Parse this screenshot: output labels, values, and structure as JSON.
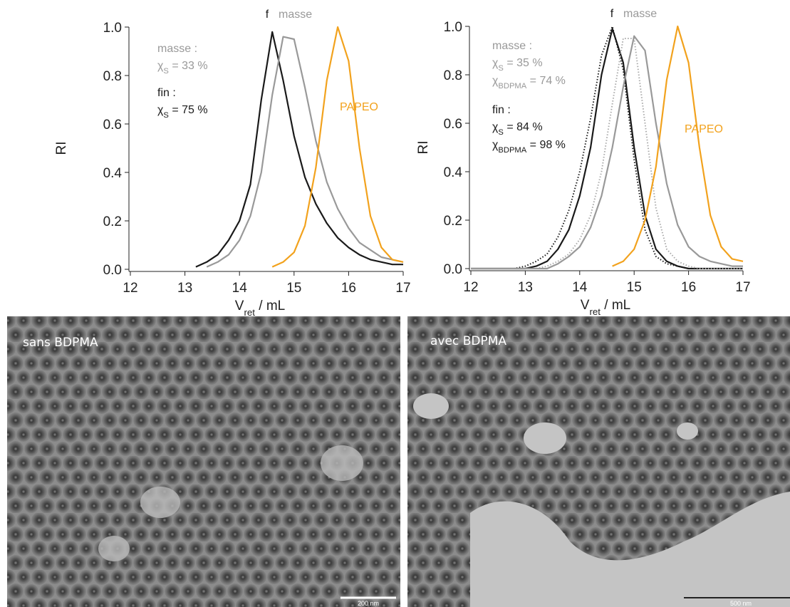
{
  "chart_data": [
    {
      "type": "line",
      "ylabel": "RI",
      "xlabel": {
        "text": "V",
        "sub": "ret",
        "after": " / mL"
      },
      "x": [
        13.2,
        13.4,
        13.6,
        13.8,
        14.0,
        14.2,
        14.4,
        14.6,
        14.8,
        15.0,
        15.2,
        15.4,
        15.6,
        15.8,
        16.0,
        16.2,
        16.4,
        16.6,
        16.8,
        17.0
      ],
      "series": [
        {
          "color": "#1a1a1a",
          "line_style": "solid",
          "values": [
            0.01,
            0.03,
            0.06,
            0.12,
            0.2,
            0.35,
            0.7,
            0.98,
            0.78,
            0.55,
            0.38,
            0.27,
            0.19,
            0.13,
            0.09,
            0.06,
            0.04,
            0.03,
            0.02,
            0.02
          ]
        },
        {
          "color": "#999999",
          "line_style": "solid",
          "values": [
            null,
            0.01,
            0.03,
            0.06,
            0.12,
            0.22,
            0.4,
            0.72,
            0.96,
            0.95,
            0.75,
            0.53,
            0.36,
            0.25,
            0.17,
            0.11,
            0.08,
            0.05,
            0.04,
            0.03
          ]
        },
        {
          "color": "#f2a21d",
          "line_style": "solid",
          "values": [
            null,
            null,
            null,
            null,
            null,
            null,
            null,
            0.01,
            0.03,
            0.07,
            0.18,
            0.42,
            0.78,
            1.0,
            0.86,
            0.5,
            0.22,
            0.09,
            0.04,
            0.03
          ]
        }
      ],
      "xlim": [
        12,
        17
      ],
      "ylim": [
        0,
        1.0
      ],
      "xticks": [
        12,
        13,
        14,
        15,
        16,
        17
      ],
      "yticks": [
        {
          "value": 0,
          "label": "0.0"
        },
        {
          "value": 0.2,
          "label": "0.2"
        },
        {
          "value": 0.4,
          "label": "0.4"
        },
        {
          "value": 0.6,
          "label": "0.6"
        },
        {
          "value": 0.8,
          "label": "0.8"
        },
        {
          "value": 1.0,
          "label": "1.0"
        }
      ],
      "grid": false,
      "annotations": [
        {
          "text": "f",
          "color": "#1a1a1a"
        },
        {
          "text": "masse",
          "color": "#999999"
        },
        {
          "text": "masse :",
          "color": "#999999"
        },
        {
          "text": "χ",
          "sub": "S",
          "after": " = 33 %",
          "color": "#999999"
        },
        {
          "text": "fin :",
          "color": "#1a1a1a"
        },
        {
          "text": "χ",
          "sub": "S",
          "after": " = 75 %",
          "color": "#1a1a1a"
        },
        {
          "text": "PAPEO",
          "color": "#f2a21d"
        }
      ]
    },
    {
      "type": "line",
      "ylabel": "RI",
      "xlabel": {
        "text": "V",
        "sub": "ret",
        "after": " / mL"
      },
      "x": [
        12.0,
        12.2,
        12.4,
        12.6,
        12.8,
        13.0,
        13.2,
        13.4,
        13.6,
        13.8,
        14.0,
        14.2,
        14.4,
        14.6,
        14.8,
        15.0,
        15.2,
        15.4,
        15.6,
        15.8,
        16.0,
        16.2,
        16.4,
        16.6,
        16.8,
        17.0
      ],
      "series": [
        {
          "color": "#1a1a1a",
          "line_style": "dotted",
          "values": [
            0,
            0,
            0,
            0,
            0,
            0.01,
            0.03,
            0.06,
            0.13,
            0.24,
            0.4,
            0.62,
            0.88,
            1.0,
            0.82,
            0.45,
            0.16,
            0.05,
            0.02,
            0.01,
            0,
            0,
            0,
            0,
            0,
            0
          ]
        },
        {
          "color": "#1a1a1a",
          "line_style": "solid",
          "values": [
            0,
            0,
            0,
            0,
            0,
            0,
            0.01,
            0.03,
            0.08,
            0.16,
            0.3,
            0.5,
            0.8,
            0.99,
            0.85,
            0.5,
            0.22,
            0.08,
            0.03,
            0.01,
            0,
            0,
            0,
            0,
            0,
            0
          ]
        },
        {
          "color": "#aaaaaa",
          "line_style": "dotted",
          "values": [
            0,
            0,
            0,
            0,
            0,
            0,
            0,
            0.01,
            0.03,
            0.06,
            0.12,
            0.22,
            0.4,
            0.68,
            0.95,
            0.95,
            0.6,
            0.25,
            0.08,
            0.03,
            0.01,
            0,
            0,
            0,
            0,
            0
          ]
        },
        {
          "color": "#999999",
          "line_style": "solid",
          "values": [
            0,
            0,
            0,
            0,
            0,
            0,
            0,
            0,
            0.02,
            0.05,
            0.09,
            0.17,
            0.3,
            0.5,
            0.75,
            0.96,
            0.9,
            0.6,
            0.35,
            0.18,
            0.09,
            0.05,
            0.03,
            0.02,
            0.01,
            0.01
          ]
        },
        {
          "color": "#f2a21d",
          "line_style": "solid",
          "values": [
            null,
            null,
            null,
            null,
            null,
            null,
            null,
            null,
            null,
            null,
            null,
            null,
            null,
            0.01,
            0.03,
            0.08,
            0.2,
            0.42,
            0.78,
            1.0,
            0.85,
            0.5,
            0.22,
            0.09,
            0.04,
            0.03
          ]
        }
      ],
      "xlim": [
        12,
        17
      ],
      "ylim": [
        0,
        1.0
      ],
      "xticks": [
        12,
        13,
        14,
        15,
        16,
        17
      ],
      "yticks": [
        {
          "value": 0,
          "label": "0.0"
        },
        {
          "value": 0.2,
          "label": "0.2"
        },
        {
          "value": 0.4,
          "label": "0.4"
        },
        {
          "value": 0.6,
          "label": "0.6"
        },
        {
          "value": 0.8,
          "label": "0.8"
        },
        {
          "value": 1.0,
          "label": "1.0"
        }
      ],
      "grid": false,
      "annotations": [
        {
          "text": "f",
          "color": "#1a1a1a"
        },
        {
          "text": "masse",
          "color": "#999999"
        },
        {
          "text": "masse :",
          "color": "#999999"
        },
        {
          "text": "χ",
          "sub": "S",
          "after": " = 35 %",
          "color": "#999999"
        },
        {
          "text": "χ",
          "sub": "BDPMA",
          "after": " = 74 %",
          "color": "#999999"
        },
        {
          "text": "fin :",
          "color": "#1a1a1a"
        },
        {
          "text": "χ",
          "sub": "S",
          "after": " = 84 %",
          "color": "#1a1a1a"
        },
        {
          "text": "χ",
          "sub": "BDPMA",
          "after": " = 98 %",
          "color": "#1a1a1a"
        },
        {
          "text": "PAPEO",
          "color": "#f2a21d"
        }
      ]
    }
  ],
  "images": [
    {
      "label": "sans BDPMA",
      "scale_bar": "200 nm"
    },
    {
      "label": "avec BDPMA",
      "scale_bar": "500 nm"
    }
  ]
}
